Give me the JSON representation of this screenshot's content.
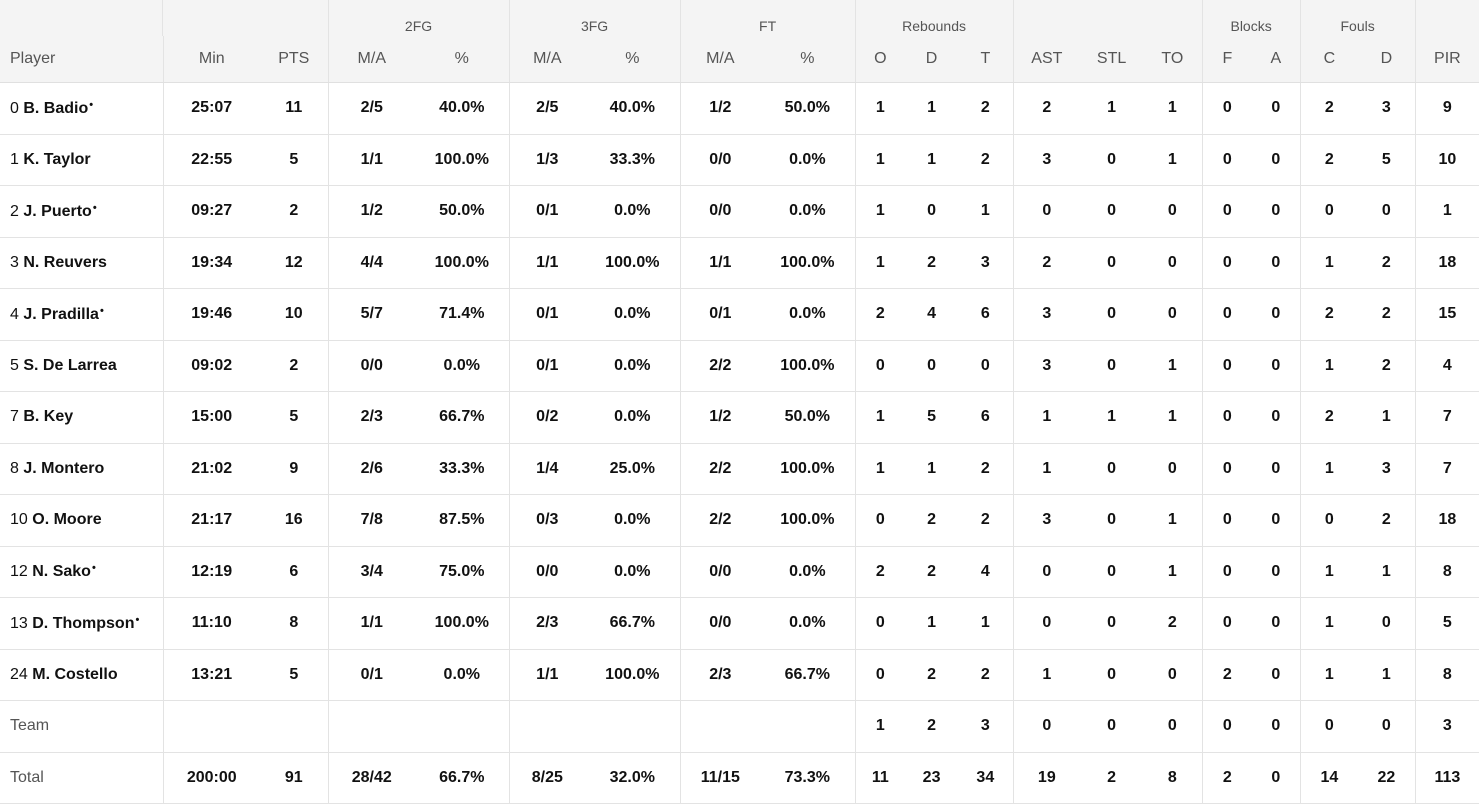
{
  "groups": {
    "fg2": "2FG",
    "fg3": "3FG",
    "ft": "FT",
    "reb": "Rebounds",
    "blk": "Blocks",
    "fouls": "Fouls"
  },
  "columns": [
    "Player",
    "Min",
    "PTS",
    "M/A",
    "%",
    "M/A",
    "%",
    "M/A",
    "%",
    "O",
    "D",
    "T",
    "AST",
    "STL",
    "TO",
    "F",
    "A",
    "C",
    "D",
    "PIR"
  ],
  "starter_mark": "•",
  "rows": [
    {
      "num": "0",
      "name": "B. Badio",
      "starter": true,
      "stats": [
        "25:07",
        "11",
        "2/5",
        "40.0%",
        "2/5",
        "40.0%",
        "1/2",
        "50.0%",
        "1",
        "1",
        "2",
        "2",
        "1",
        "1",
        "0",
        "0",
        "2",
        "3",
        "9"
      ]
    },
    {
      "num": "1",
      "name": "K. Taylor",
      "starter": false,
      "stats": [
        "22:55",
        "5",
        "1/1",
        "100.0%",
        "1/3",
        "33.3%",
        "0/0",
        "0.0%",
        "1",
        "1",
        "2",
        "3",
        "0",
        "1",
        "0",
        "0",
        "2",
        "5",
        "10"
      ]
    },
    {
      "num": "2",
      "name": "J. Puerto",
      "starter": true,
      "stats": [
        "09:27",
        "2",
        "1/2",
        "50.0%",
        "0/1",
        "0.0%",
        "0/0",
        "0.0%",
        "1",
        "0",
        "1",
        "0",
        "0",
        "0",
        "0",
        "0",
        "0",
        "0",
        "1"
      ]
    },
    {
      "num": "3",
      "name": "N. Reuvers",
      "starter": false,
      "stats": [
        "19:34",
        "12",
        "4/4",
        "100.0%",
        "1/1",
        "100.0%",
        "1/1",
        "100.0%",
        "1",
        "2",
        "3",
        "2",
        "0",
        "0",
        "0",
        "0",
        "1",
        "2",
        "18"
      ]
    },
    {
      "num": "4",
      "name": "J. Pradilla",
      "starter": true,
      "stats": [
        "19:46",
        "10",
        "5/7",
        "71.4%",
        "0/1",
        "0.0%",
        "0/1",
        "0.0%",
        "2",
        "4",
        "6",
        "3",
        "0",
        "0",
        "0",
        "0",
        "2",
        "2",
        "15"
      ]
    },
    {
      "num": "5",
      "name": "S. De Larrea",
      "starter": false,
      "stats": [
        "09:02",
        "2",
        "0/0",
        "0.0%",
        "0/1",
        "0.0%",
        "2/2",
        "100.0%",
        "0",
        "0",
        "0",
        "3",
        "0",
        "1",
        "0",
        "0",
        "1",
        "2",
        "4"
      ]
    },
    {
      "num": "7",
      "name": "B. Key",
      "starter": false,
      "stats": [
        "15:00",
        "5",
        "2/3",
        "66.7%",
        "0/2",
        "0.0%",
        "1/2",
        "50.0%",
        "1",
        "5",
        "6",
        "1",
        "1",
        "1",
        "0",
        "0",
        "2",
        "1",
        "7"
      ]
    },
    {
      "num": "8",
      "name": "J. Montero",
      "starter": false,
      "stats": [
        "21:02",
        "9",
        "2/6",
        "33.3%",
        "1/4",
        "25.0%",
        "2/2",
        "100.0%",
        "1",
        "1",
        "2",
        "1",
        "0",
        "0",
        "0",
        "0",
        "1",
        "3",
        "7"
      ]
    },
    {
      "num": "10",
      "name": "O. Moore",
      "starter": false,
      "stats": [
        "21:17",
        "16",
        "7/8",
        "87.5%",
        "0/3",
        "0.0%",
        "2/2",
        "100.0%",
        "0",
        "2",
        "2",
        "3",
        "0",
        "1",
        "0",
        "0",
        "0",
        "2",
        "18"
      ]
    },
    {
      "num": "12",
      "name": "N. Sako",
      "starter": true,
      "stats": [
        "12:19",
        "6",
        "3/4",
        "75.0%",
        "0/0",
        "0.0%",
        "0/0",
        "0.0%",
        "2",
        "2",
        "4",
        "0",
        "0",
        "1",
        "0",
        "0",
        "1",
        "1",
        "8"
      ]
    },
    {
      "num": "13",
      "name": "D. Thompson",
      "starter": true,
      "stats": [
        "11:10",
        "8",
        "1/1",
        "100.0%",
        "2/3",
        "66.7%",
        "0/0",
        "0.0%",
        "0",
        "1",
        "1",
        "0",
        "0",
        "2",
        "0",
        "0",
        "1",
        "0",
        "5"
      ]
    },
    {
      "num": "24",
      "name": "M. Costello",
      "starter": false,
      "stats": [
        "13:21",
        "5",
        "0/1",
        "0.0%",
        "1/1",
        "100.0%",
        "2/3",
        "66.7%",
        "0",
        "2",
        "2",
        "1",
        "0",
        "0",
        "2",
        "0",
        "1",
        "1",
        "8"
      ]
    }
  ],
  "team": {
    "label": "Team",
    "stats": [
      "",
      "",
      "",
      "",
      "",
      "",
      "",
      "",
      "1",
      "2",
      "3",
      "0",
      "0",
      "0",
      "0",
      "0",
      "0",
      "0",
      "3"
    ]
  },
  "total": {
    "label": "Total",
    "stats": [
      "200:00",
      "91",
      "28/42",
      "66.7%",
      "8/25",
      "32.0%",
      "11/15",
      "73.3%",
      "11",
      "23",
      "34",
      "19",
      "2",
      "8",
      "2",
      "0",
      "14",
      "22",
      "113"
    ]
  }
}
